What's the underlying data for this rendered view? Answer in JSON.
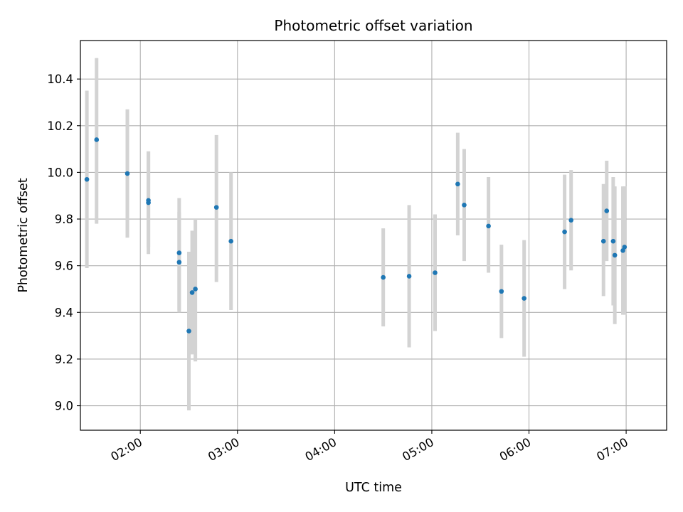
{
  "chart_data": {
    "type": "scatter",
    "title": "Photometric offset variation",
    "xlabel": "UTC time",
    "ylabel": "Photometric offset",
    "x_unit": "UTC time (hh:mm)",
    "xlim": [
      "01:23",
      "07:25"
    ],
    "ylim": [
      8.895,
      10.565
    ],
    "x_ticks": [
      "02:00",
      "03:00",
      "04:00",
      "05:00",
      "06:00",
      "07:00"
    ],
    "y_ticks": [
      "9.0",
      "9.2",
      "9.4",
      "9.6",
      "9.8",
      "10.0",
      "10.2",
      "10.4"
    ],
    "grid": true,
    "legend": "none",
    "colors": {
      "point": "#1f77b4",
      "error_bar": "#d3d3d3",
      "grid": "#b0b0b0"
    },
    "series": [
      {
        "points": [
          {
            "x": "01:27",
            "y": 9.97,
            "ylo": 9.59,
            "yhi": 10.35
          },
          {
            "x": "01:33",
            "y": 10.14,
            "ylo": 9.78,
            "yhi": 10.49
          },
          {
            "x": "01:52",
            "y": 9.995,
            "ylo": 9.72,
            "yhi": 10.27
          },
          {
            "x": "02:05",
            "y": 9.87,
            "ylo": 9.65,
            "yhi": 10.09
          },
          {
            "x": "02:05",
            "y": 9.88,
            "ylo": 9.68,
            "yhi": 10.09
          },
          {
            "x": "02:24",
            "y": 9.615,
            "ylo": 9.4,
            "yhi": 9.83
          },
          {
            "x": "02:24",
            "y": 9.655,
            "ylo": 9.41,
            "yhi": 9.89
          },
          {
            "x": "02:30",
            "y": 9.32,
            "ylo": 8.98,
            "yhi": 9.66
          },
          {
            "x": "02:32",
            "y": 9.485,
            "ylo": 9.22,
            "yhi": 9.75
          },
          {
            "x": "02:34",
            "y": 9.5,
            "ylo": 9.19,
            "yhi": 9.8
          },
          {
            "x": "02:47",
            "y": 9.85,
            "ylo": 9.53,
            "yhi": 10.16
          },
          {
            "x": "02:56",
            "y": 9.705,
            "ylo": 9.41,
            "yhi": 10.0
          },
          {
            "x": "04:30",
            "y": 9.55,
            "ylo": 9.34,
            "yhi": 9.76
          },
          {
            "x": "04:46",
            "y": 9.555,
            "ylo": 9.25,
            "yhi": 9.86
          },
          {
            "x": "05:02",
            "y": 9.57,
            "ylo": 9.32,
            "yhi": 9.82
          },
          {
            "x": "05:16",
            "y": 9.95,
            "ylo": 9.73,
            "yhi": 10.17
          },
          {
            "x": "05:20",
            "y": 9.86,
            "ylo": 9.62,
            "yhi": 10.1
          },
          {
            "x": "05:35",
            "y": 9.77,
            "ylo": 9.57,
            "yhi": 9.98
          },
          {
            "x": "05:43",
            "y": 9.49,
            "ylo": 9.29,
            "yhi": 9.69
          },
          {
            "x": "05:57",
            "y": 9.46,
            "ylo": 9.21,
            "yhi": 9.71
          },
          {
            "x": "06:22",
            "y": 9.745,
            "ylo": 9.5,
            "yhi": 9.99
          },
          {
            "x": "06:26",
            "y": 9.795,
            "ylo": 9.58,
            "yhi": 10.01
          },
          {
            "x": "06:46",
            "y": 9.705,
            "ylo": 9.47,
            "yhi": 9.95
          },
          {
            "x": "06:48",
            "y": 9.835,
            "ylo": 9.62,
            "yhi": 10.05
          },
          {
            "x": "06:52",
            "y": 9.705,
            "ylo": 9.43,
            "yhi": 9.98
          },
          {
            "x": "06:53",
            "y": 9.645,
            "ylo": 9.35,
            "yhi": 9.94
          },
          {
            "x": "06:58",
            "y": 9.665,
            "ylo": 9.39,
            "yhi": 9.94
          },
          {
            "x": "06:59",
            "y": 9.68,
            "ylo": 9.39,
            "yhi": 9.94
          }
        ]
      }
    ]
  }
}
